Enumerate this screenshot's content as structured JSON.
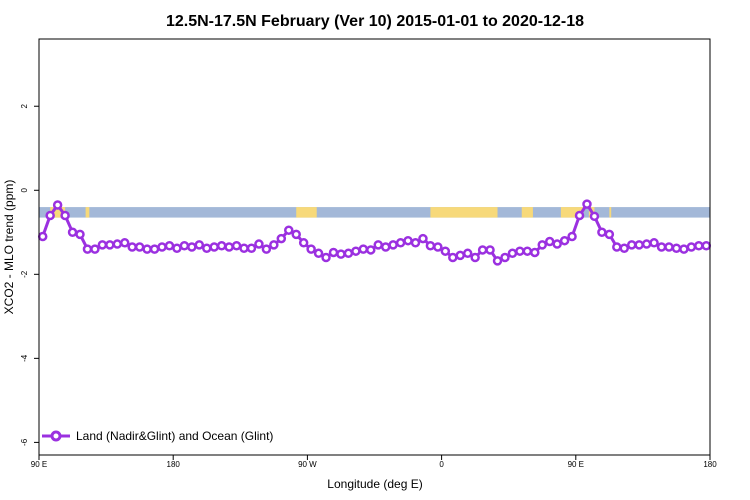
{
  "chart_data": {
    "type": "line",
    "title": "12.5N-17.5N February (Ver 10)   2015-01-01 to 2020-12-18",
    "xlabel": "Longitude (deg E)",
    "ylabel": "XCO2 - MLO trend (ppm)",
    "xlim": [
      90,
      450
    ],
    "ylim": [
      -6.3,
      3.6
    ],
    "x_ticks": [
      {
        "value": 90,
        "label": "90 E"
      },
      {
        "value": 162,
        "label": "180"
      },
      {
        "value": 234,
        "label": "90 W"
      },
      {
        "value": 306,
        "label": "0"
      },
      {
        "value": 378,
        "label": "90 E"
      },
      {
        "value": 450,
        "label": "180"
      }
    ],
    "y_ticks": [
      {
        "value": -6,
        "label": "-6"
      },
      {
        "value": -4,
        "label": "-4"
      },
      {
        "value": -2,
        "label": "-2"
      },
      {
        "value": 0,
        "label": "0"
      },
      {
        "value": 2,
        "label": "2"
      }
    ],
    "grid": false,
    "legend_position": "bottom-left",
    "series": [
      {
        "name": "Land (Nadir&Glint) and Ocean (Glint)",
        "color": "#9b30e0",
        "x": [
          92,
          96,
          100,
          104,
          108,
          112,
          116,
          120,
          124,
          128,
          132,
          136,
          140,
          144,
          148,
          152,
          156,
          160,
          164,
          168,
          172,
          176,
          180,
          184,
          188,
          192,
          196,
          200,
          204,
          208,
          212,
          216,
          220,
          224,
          228,
          232,
          236,
          240,
          244,
          248,
          252,
          256,
          260,
          264,
          268,
          272,
          276,
          280,
          284,
          288,
          292,
          296,
          300,
          304,
          308,
          312,
          316,
          320,
          324,
          328,
          332,
          336,
          340,
          344,
          348,
          352,
          356,
          360,
          364,
          368,
          372,
          376,
          380,
          384,
          388,
          392,
          396,
          400,
          404,
          408,
          412,
          416,
          420,
          424,
          428,
          432,
          436,
          440,
          444,
          448
        ],
        "values": [
          -1.1,
          -0.6,
          -0.35,
          -0.6,
          -1.0,
          -1.05,
          -1.4,
          -1.4,
          -1.3,
          -1.3,
          -1.28,
          -1.25,
          -1.35,
          -1.35,
          -1.4,
          -1.4,
          -1.35,
          -1.32,
          -1.38,
          -1.32,
          -1.35,
          -1.3,
          -1.38,
          -1.35,
          -1.32,
          -1.35,
          -1.32,
          -1.38,
          -1.38,
          -1.28,
          -1.4,
          -1.3,
          -1.15,
          -0.95,
          -1.05,
          -1.25,
          -1.4,
          -1.5,
          -1.6,
          -1.48,
          -1.52,
          -1.5,
          -1.45,
          -1.4,
          -1.42,
          -1.3,
          -1.35,
          -1.3,
          -1.25,
          -1.2,
          -1.25,
          -1.15,
          -1.32,
          -1.35,
          -1.45,
          -1.6,
          -1.55,
          -1.5,
          -1.6,
          -1.42,
          -1.42,
          -1.68,
          -1.6,
          -1.5,
          -1.45,
          -1.45,
          -1.48,
          -1.3,
          -1.22,
          -1.28,
          -1.2,
          -1.1,
          -0.6,
          -0.33,
          -0.62,
          -1.0,
          -1.05,
          -1.35,
          -1.38,
          -1.3,
          -1.3,
          -1.28,
          -1.25,
          -1.35,
          -1.35,
          -1.38,
          -1.4,
          -1.35,
          -1.32,
          -1.32
        ]
      }
    ],
    "land_ocean_strip": {
      "y_top": -0.4,
      "y_bottom": -0.65,
      "ocean_color": "#a3b8d8",
      "land_color": "#f7d97a",
      "land_segments": [
        [
          96,
          104
        ],
        [
          115,
          117
        ],
        [
          228,
          239
        ],
        [
          300,
          336
        ],
        [
          349,
          355
        ],
        [
          370,
          382
        ],
        [
          385,
          388
        ],
        [
          396,
          397
        ]
      ]
    }
  }
}
